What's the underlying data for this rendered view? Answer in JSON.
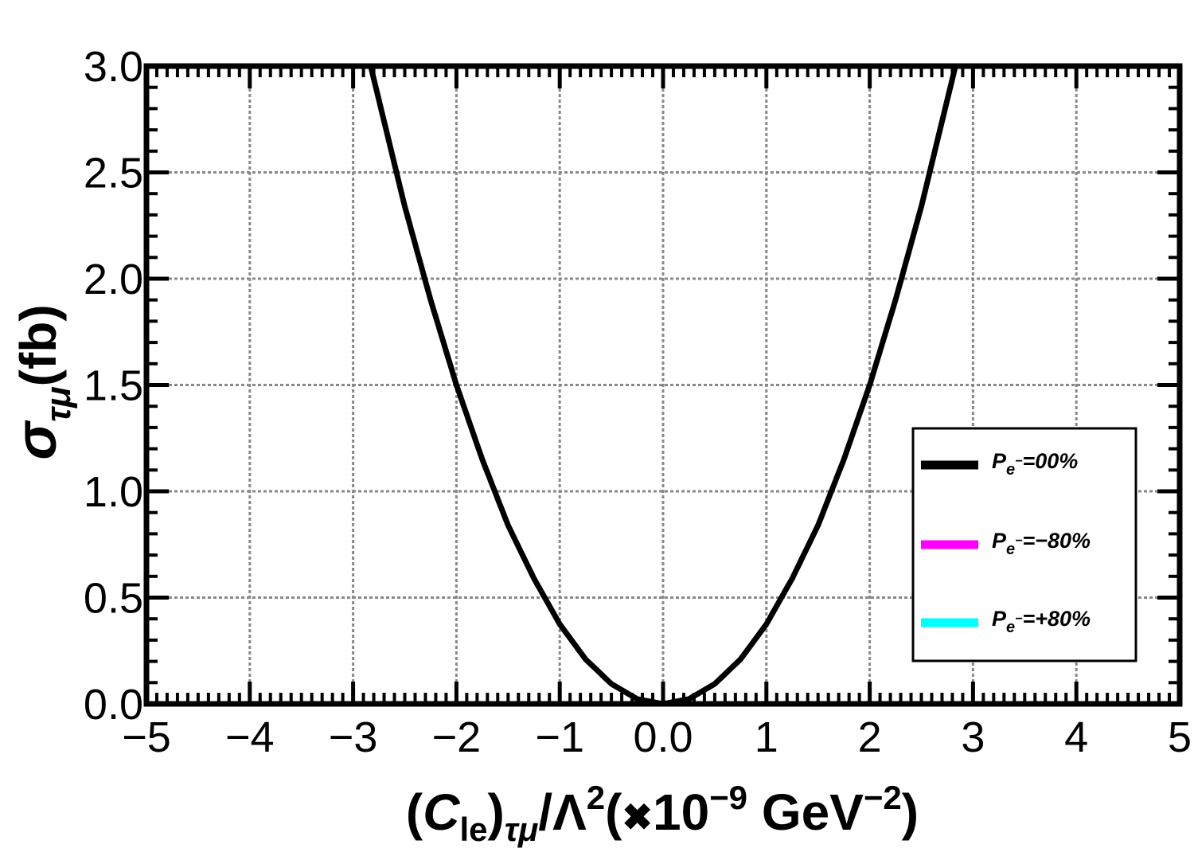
{
  "chart_data": {
    "type": "line",
    "xlabel": "(C_le)_τμ/Λ²(×10⁻⁹ GeV⁻²)",
    "ylabel": "σ_τμ(fb)",
    "xlim": [
      -5,
      5
    ],
    "ylim": [
      0.0,
      3.0
    ],
    "x_ticks": [
      "−5",
      "−4",
      "−3",
      "−2",
      "−1",
      "0.0",
      "1",
      "2",
      "3",
      "4",
      "5"
    ],
    "y_ticks": [
      "0.0",
      "0.5",
      "1.0",
      "1.5",
      "2.0",
      "2.5",
      "3.0"
    ],
    "grid": true,
    "legend_position": "right",
    "series": [
      {
        "name": "P_e⁻=00%",
        "color": "#000000",
        "x": [
          -2.83,
          -2.5,
          -2.25,
          -2.0,
          -1.75,
          -1.5,
          -1.25,
          -1.0,
          -0.75,
          -0.5,
          -0.25,
          0.0,
          0.25,
          0.5,
          0.75,
          1.0,
          1.25,
          1.5,
          1.75,
          2.0,
          2.25,
          2.5,
          2.83
        ],
        "y": [
          3.0,
          2.34,
          1.9,
          1.5,
          1.15,
          0.84,
          0.59,
          0.375,
          0.21,
          0.094,
          0.023,
          0.0,
          0.023,
          0.094,
          0.21,
          0.375,
          0.59,
          0.84,
          1.15,
          1.5,
          1.9,
          2.34,
          3.0
        ]
      },
      {
        "name": "P_e⁻=−80%",
        "color": "#ff00ff",
        "x": [],
        "y": []
      },
      {
        "name": "P_e⁻=+80%",
        "color": "#00ffff",
        "x": [],
        "y": []
      }
    ]
  }
}
